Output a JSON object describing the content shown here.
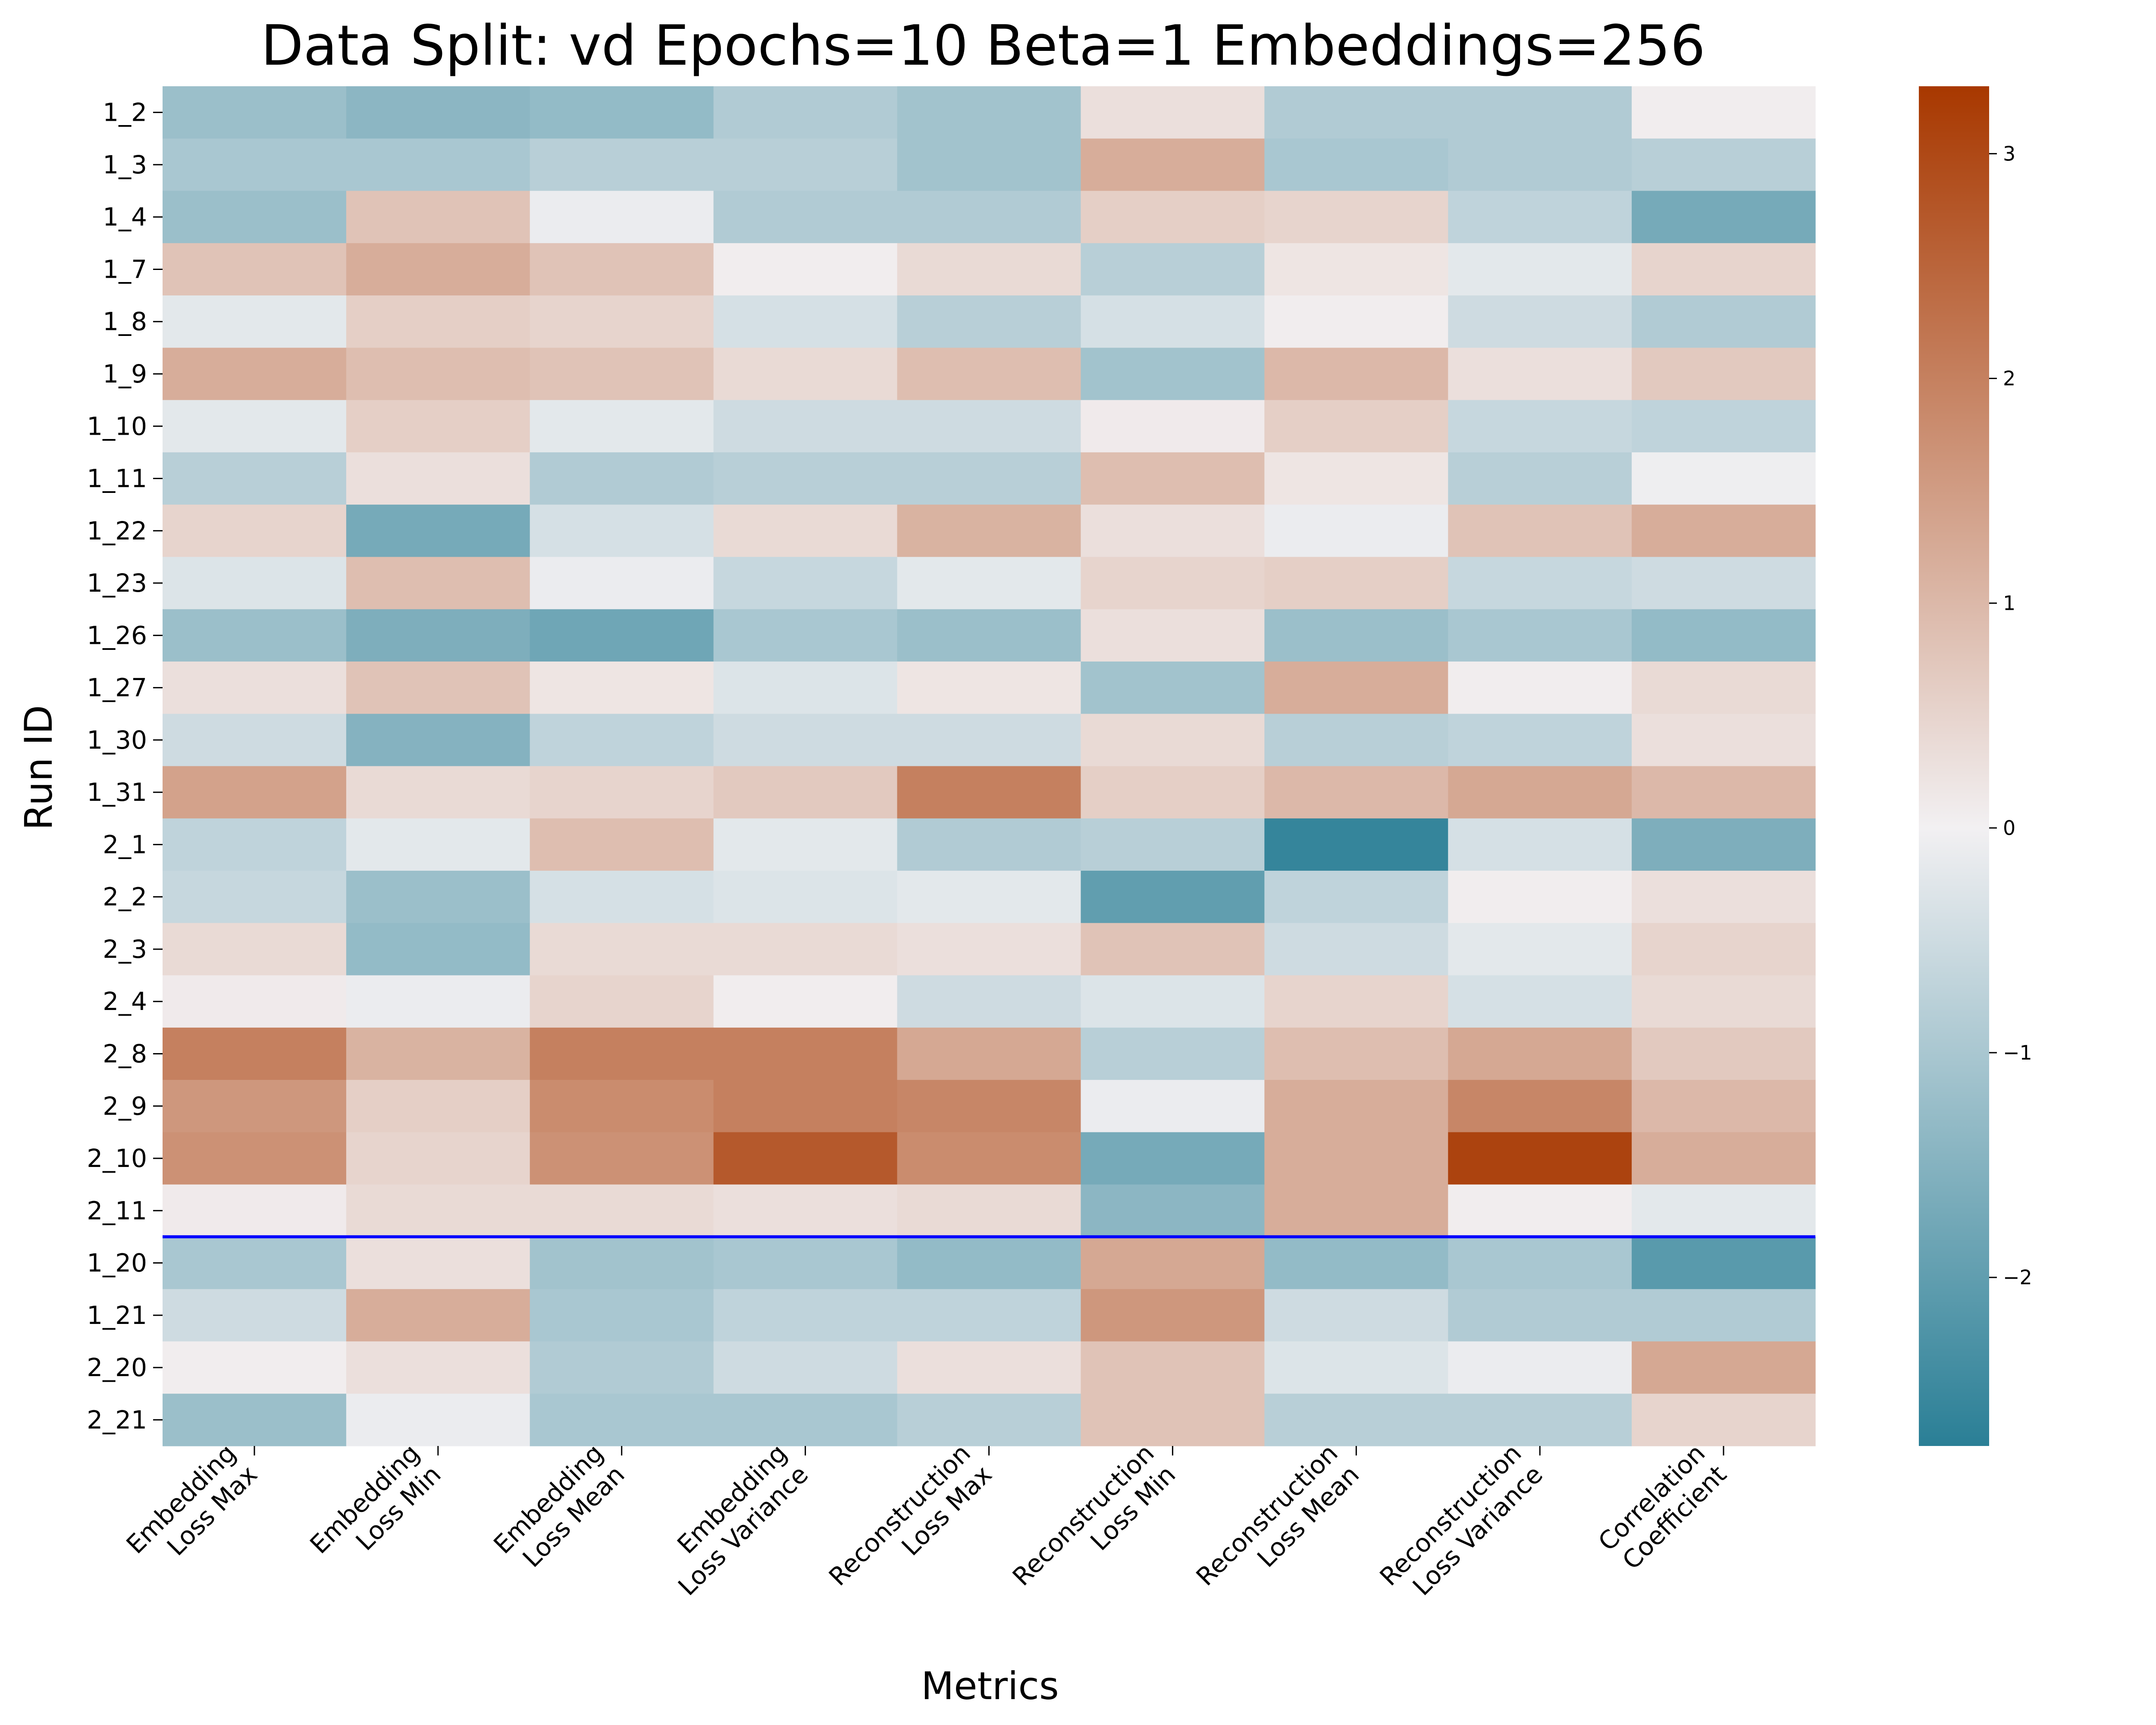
{
  "chart_data": {
    "type": "heatmap",
    "title": "Data Split: vd Epochs=10 Beta=1 Embeddings=256",
    "xlabel": "Metrics",
    "ylabel": "Run ID",
    "columns": [
      [
        "Embedding",
        "Loss Max"
      ],
      [
        "Embedding",
        "Loss Min"
      ],
      [
        "Embedding",
        "Loss Mean"
      ],
      [
        "Embedding",
        "Loss Variance"
      ],
      [
        "Reconstruction",
        "Loss Max"
      ],
      [
        "Reconstruction",
        "Loss Min"
      ],
      [
        "Reconstruction",
        "Loss Mean"
      ],
      [
        "Reconstruction",
        "Loss Variance"
      ],
      [
        "Correlation",
        "Coefficient"
      ]
    ],
    "rows": [
      "1_2",
      "1_3",
      "1_4",
      "1_7",
      "1_8",
      "1_9",
      "1_10",
      "1_11",
      "1_22",
      "1_23",
      "1_26",
      "1_27",
      "1_30",
      "1_31",
      "2_1",
      "2_2",
      "2_3",
      "2_4",
      "2_8",
      "2_9",
      "2_10",
      "2_11",
      "1_20",
      "1_21",
      "2_20",
      "2_21"
    ],
    "values": [
      [
        -1.2,
        -1.4,
        -1.3,
        -0.9,
        -1.1,
        0.3,
        -0.9,
        -0.9,
        0.05
      ],
      [
        -1.0,
        -1.0,
        -0.8,
        -0.8,
        -1.1,
        1.2,
        -1.0,
        -0.9,
        -0.8
      ],
      [
        -1.2,
        0.8,
        -0.1,
        -0.9,
        -0.9,
        0.6,
        0.5,
        -0.7,
        -1.7
      ],
      [
        0.8,
        1.2,
        0.8,
        0.05,
        0.4,
        -0.8,
        0.2,
        -0.2,
        0.5
      ],
      [
        -0.2,
        0.6,
        0.5,
        -0.4,
        -0.8,
        -0.4,
        0.05,
        -0.5,
        -0.9
      ],
      [
        1.2,
        0.9,
        0.8,
        0.4,
        0.9,
        -1.1,
        1.0,
        0.3,
        0.7
      ],
      [
        -0.2,
        0.6,
        -0.2,
        -0.5,
        -0.5,
        0.1,
        0.6,
        -0.6,
        -0.7
      ],
      [
        -0.8,
        0.3,
        -0.9,
        -0.8,
        -0.8,
        0.9,
        0.2,
        -0.8,
        -0.05
      ],
      [
        0.5,
        -1.7,
        -0.4,
        0.4,
        1.1,
        0.3,
        -0.1,
        0.8,
        1.2
      ],
      [
        -0.3,
        0.9,
        -0.1,
        -0.6,
        -0.2,
        0.5,
        0.6,
        -0.6,
        -0.5
      ],
      [
        -1.2,
        -1.6,
        -1.8,
        -1.0,
        -1.2,
        0.3,
        -1.2,
        -1.0,
        -1.3
      ],
      [
        0.3,
        0.8,
        0.2,
        -0.3,
        0.2,
        -1.1,
        1.2,
        0.05,
        0.4
      ],
      [
        -0.5,
        -1.5,
        -0.7,
        -0.5,
        -0.5,
        0.4,
        -0.8,
        -0.7,
        0.3
      ],
      [
        1.4,
        0.4,
        0.5,
        0.7,
        2.0,
        0.6,
        1.0,
        1.3,
        1.0
      ],
      [
        -0.7,
        -0.2,
        0.9,
        -0.2,
        -0.9,
        -0.8,
        -2.6,
        -0.4,
        -1.6
      ],
      [
        -0.6,
        -1.2,
        -0.4,
        -0.3,
        -0.2,
        -2.0,
        -0.7,
        0.05,
        0.3
      ],
      [
        0.4,
        -1.3,
        0.4,
        0.4,
        0.3,
        0.8,
        -0.5,
        -0.2,
        0.5
      ],
      [
        0.1,
        -0.1,
        0.5,
        0.05,
        -0.5,
        -0.3,
        0.5,
        -0.4,
        0.4
      ],
      [
        2.0,
        1.1,
        2.0,
        2.0,
        1.3,
        -0.8,
        0.9,
        1.3,
        0.7
      ],
      [
        1.6,
        0.6,
        1.8,
        2.0,
        1.9,
        -0.1,
        1.2,
        1.9,
        1.0
      ],
      [
        1.7,
        0.5,
        1.7,
        2.7,
        1.8,
        -1.7,
        1.2,
        3.1,
        1.2
      ],
      [
        0.1,
        0.4,
        0.4,
        0.3,
        0.4,
        -1.4,
        1.2,
        0.05,
        -0.2
      ],
      [
        -1.0,
        0.3,
        -1.1,
        -1.0,
        -1.3,
        1.3,
        -1.3,
        -1.0,
        -2.1
      ],
      [
        -0.5,
        1.2,
        -1.0,
        -0.7,
        -0.7,
        1.6,
        -0.5,
        -0.9,
        -0.9
      ],
      [
        0.05,
        0.3,
        -0.9,
        -0.5,
        0.3,
        0.8,
        -0.3,
        -0.1,
        1.3
      ],
      [
        -1.2,
        -0.1,
        -1.0,
        -1.0,
        -0.8,
        0.8,
        -0.8,
        -0.8,
        0.5
      ]
    ],
    "divider_after_row": "2_11",
    "divider_color": "#0000ff",
    "colormap": {
      "low": "#2a7f96",
      "mid": "#f2f0f2",
      "high": "#a83800"
    },
    "vmin": -2.75,
    "vmax": 3.3,
    "colorbar_ticks": [
      -2,
      -1,
      0,
      1,
      2,
      3
    ],
    "colorbar_tick_labels": [
      "−2",
      "−1",
      "0",
      "1",
      "2",
      "3"
    ]
  }
}
